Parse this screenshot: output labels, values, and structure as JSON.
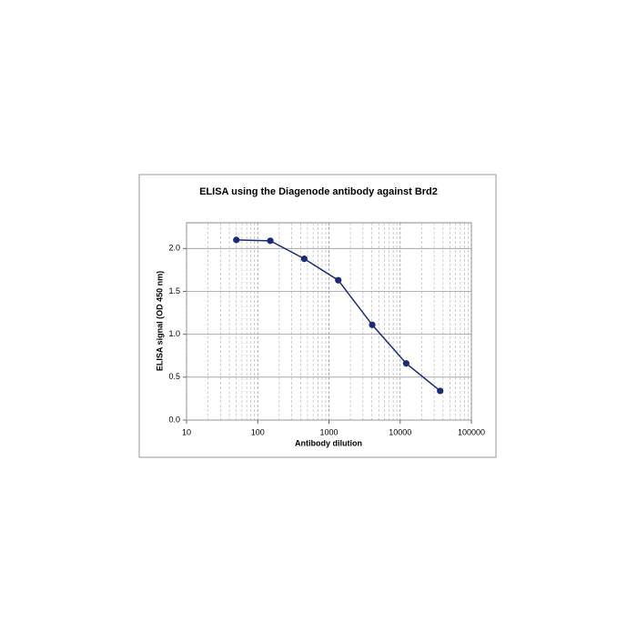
{
  "chart_data": {
    "type": "line",
    "title": "ELISA using the Diagenode antibody against Brd2",
    "x_label": "Antibody dilution",
    "y_label": "ELISA signal (OD 450 nm)",
    "x_scale": "log",
    "grid": true,
    "x": [
      50,
      150,
      450,
      1350,
      4050,
      12150,
      36450
    ],
    "series": [
      {
        "color": "#1a2a7a",
        "values": [
          2.1,
          2.09,
          1.88,
          1.63,
          1.11,
          0.66,
          0.34
        ]
      }
    ],
    "xlim": [
      10,
      100000
    ],
    "xticks": [
      10,
      100,
      1000,
      10000,
      100000
    ],
    "ylim": [
      0,
      2.3
    ],
    "yticks": [
      {
        "value": 0,
        "label": "0.0"
      },
      0.5,
      {
        "value": 1,
        "label": "1.0"
      },
      1.5,
      {
        "value": 2,
        "label": "2.0"
      }
    ]
  }
}
